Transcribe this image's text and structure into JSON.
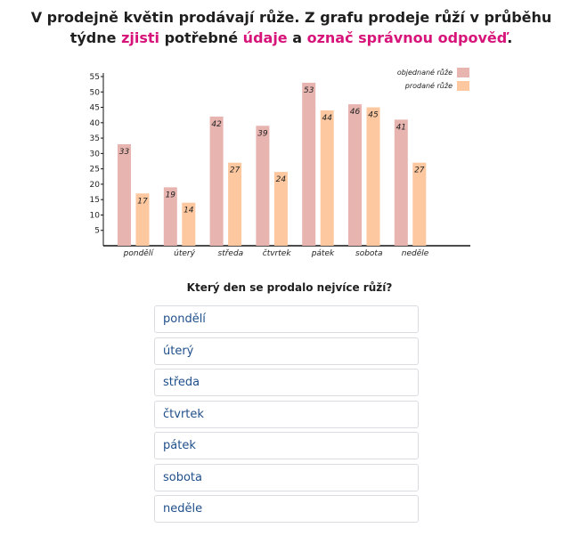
{
  "instruction": {
    "part1": "V prodejně květin prodávají růže. Z grafu prodeje růží v průběhu týdne ",
    "hl1": "zjisti",
    "part2": " potřebné ",
    "hl2": "údaje",
    "part3": " a ",
    "hl3": "označ správnou odpověď",
    "part4": "."
  },
  "colors": {
    "highlight": "#d6147a",
    "series_ordered": "#e8b4b0",
    "series_sold": "#fdc89f",
    "option_text": "#1f4f8a"
  },
  "chart_data": {
    "type": "bar",
    "categories": [
      "pondělí",
      "úterý",
      "středa",
      "čtvrtek",
      "pátek",
      "sobota",
      "neděle"
    ],
    "series": [
      {
        "name": "objednané růže",
        "values": [
          33,
          19,
          42,
          39,
          53,
          46,
          41
        ],
        "color": "#e8b4b0"
      },
      {
        "name": "prodané růže",
        "values": [
          17,
          14,
          27,
          24,
          44,
          45,
          27
        ],
        "color": "#fdc89f"
      }
    ],
    "yticks": [
      5,
      10,
      15,
      20,
      25,
      30,
      35,
      40,
      45,
      50,
      55
    ],
    "ylim": [
      0,
      55
    ],
    "legend": "top-right",
    "grid": false
  },
  "question": "Který den se prodalo nejvíce růží?",
  "options": [
    "pondělí",
    "úterý",
    "středa",
    "čtvrtek",
    "pátek",
    "sobota",
    "neděle"
  ]
}
